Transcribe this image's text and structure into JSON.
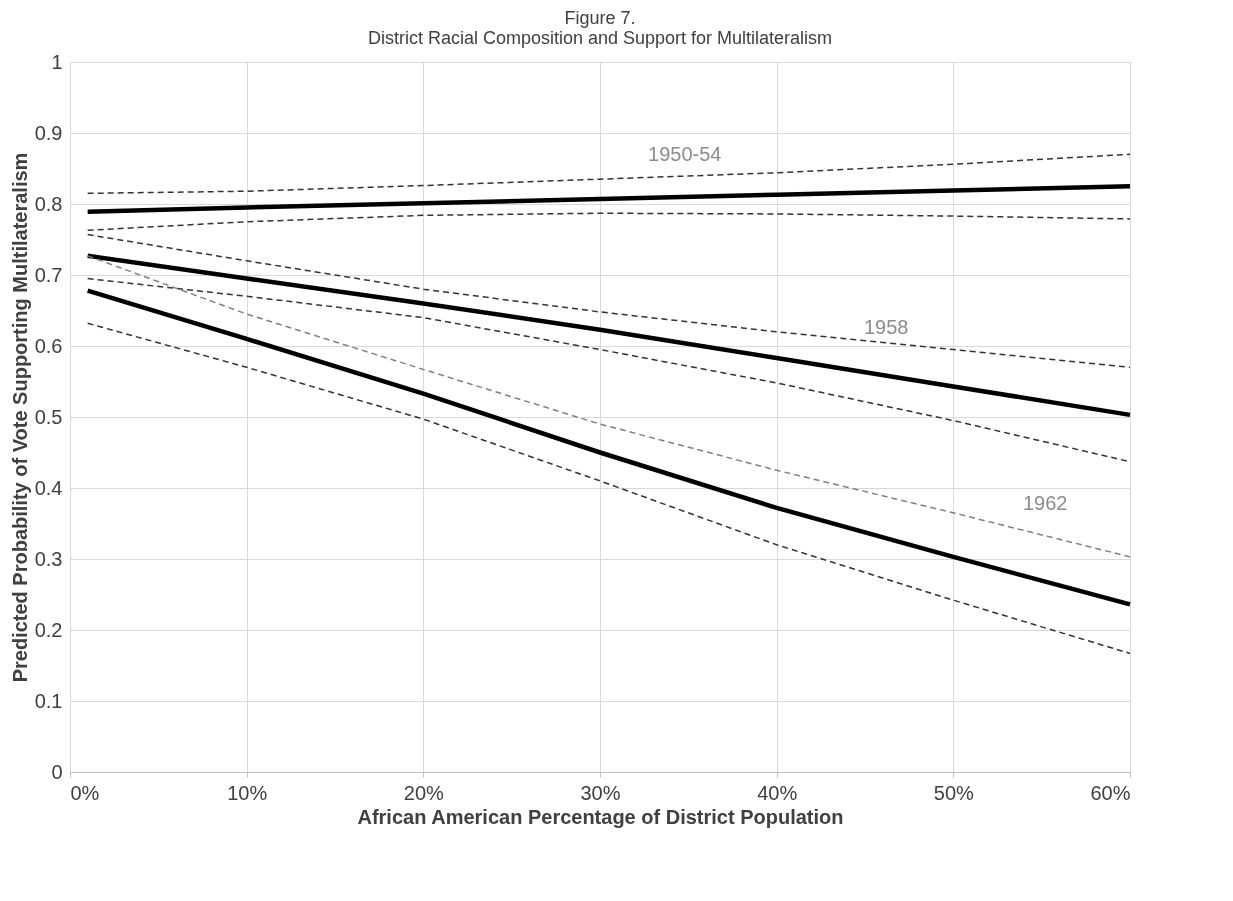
{
  "chart_data": {
    "type": "line",
    "title": "Figure 7.",
    "subtitle": "District Racial Composition and Support for Multilateralism",
    "xlabel": "African American Percentage of District Population",
    "ylabel": "Predicted Probability of Vote Supporting Multilateralism",
    "x": [
      1,
      10,
      20,
      30,
      40,
      50,
      60
    ],
    "series": [
      {
        "name": "1950-54",
        "color": "#000000",
        "line_style": "solid",
        "values": [
          0.789,
          0.795,
          0.801,
          0.807,
          0.813,
          0.819,
          0.825
        ]
      },
      {
        "color": "#333333",
        "line_style": "dashed",
        "values": [
          0.815,
          0.818,
          0.826,
          0.835,
          0.844,
          0.856,
          0.87
        ]
      },
      {
        "color": "#333333",
        "line_style": "dashed",
        "values": [
          0.763,
          0.775,
          0.784,
          0.787,
          0.786,
          0.783,
          0.779
        ]
      },
      {
        "name": "1958",
        "color": "#000000",
        "line_style": "solid",
        "values": [
          0.727,
          0.695,
          0.66,
          0.623,
          0.583,
          0.543,
          0.503
        ]
      },
      {
        "color": "#333333",
        "line_style": "dashed",
        "values": [
          0.757,
          0.72,
          0.68,
          0.648,
          0.62,
          0.595,
          0.57
        ]
      },
      {
        "color": "#333333",
        "line_style": "dashed",
        "values": [
          0.695,
          0.67,
          0.64,
          0.595,
          0.548,
          0.495,
          0.437
        ]
      },
      {
        "name": "1962",
        "color": "#000000",
        "line_style": "solid",
        "values": [
          0.678,
          0.61,
          0.533,
          0.45,
          0.372,
          0.303,
          0.236
        ]
      },
      {
        "color": "#808080",
        "line_style": "dashed",
        "values": [
          0.727,
          0.645,
          0.567,
          0.49,
          0.425,
          0.365,
          0.303
        ]
      },
      {
        "color": "#333333",
        "line_style": "dashed",
        "values": [
          0.632,
          0.57,
          0.497,
          0.41,
          0.32,
          0.242,
          0.167
        ]
      }
    ],
    "xlim": [
      0,
      60
    ],
    "xticks": [
      {
        "value": 0,
        "label": "0%"
      },
      {
        "value": 10,
        "label": "10%"
      },
      {
        "value": 20,
        "label": "20%"
      },
      {
        "value": 30,
        "label": "30%"
      },
      {
        "value": 40,
        "label": "40%"
      },
      {
        "value": 50,
        "label": "50%"
      },
      {
        "value": 60,
        "label": "60%"
      }
    ],
    "ylim": [
      0,
      1
    ],
    "yticks": [
      0,
      0.1,
      0.2,
      0.3,
      0.4,
      0.5,
      0.6,
      0.7,
      0.8,
      0.9,
      1
    ],
    "grid": true
  }
}
